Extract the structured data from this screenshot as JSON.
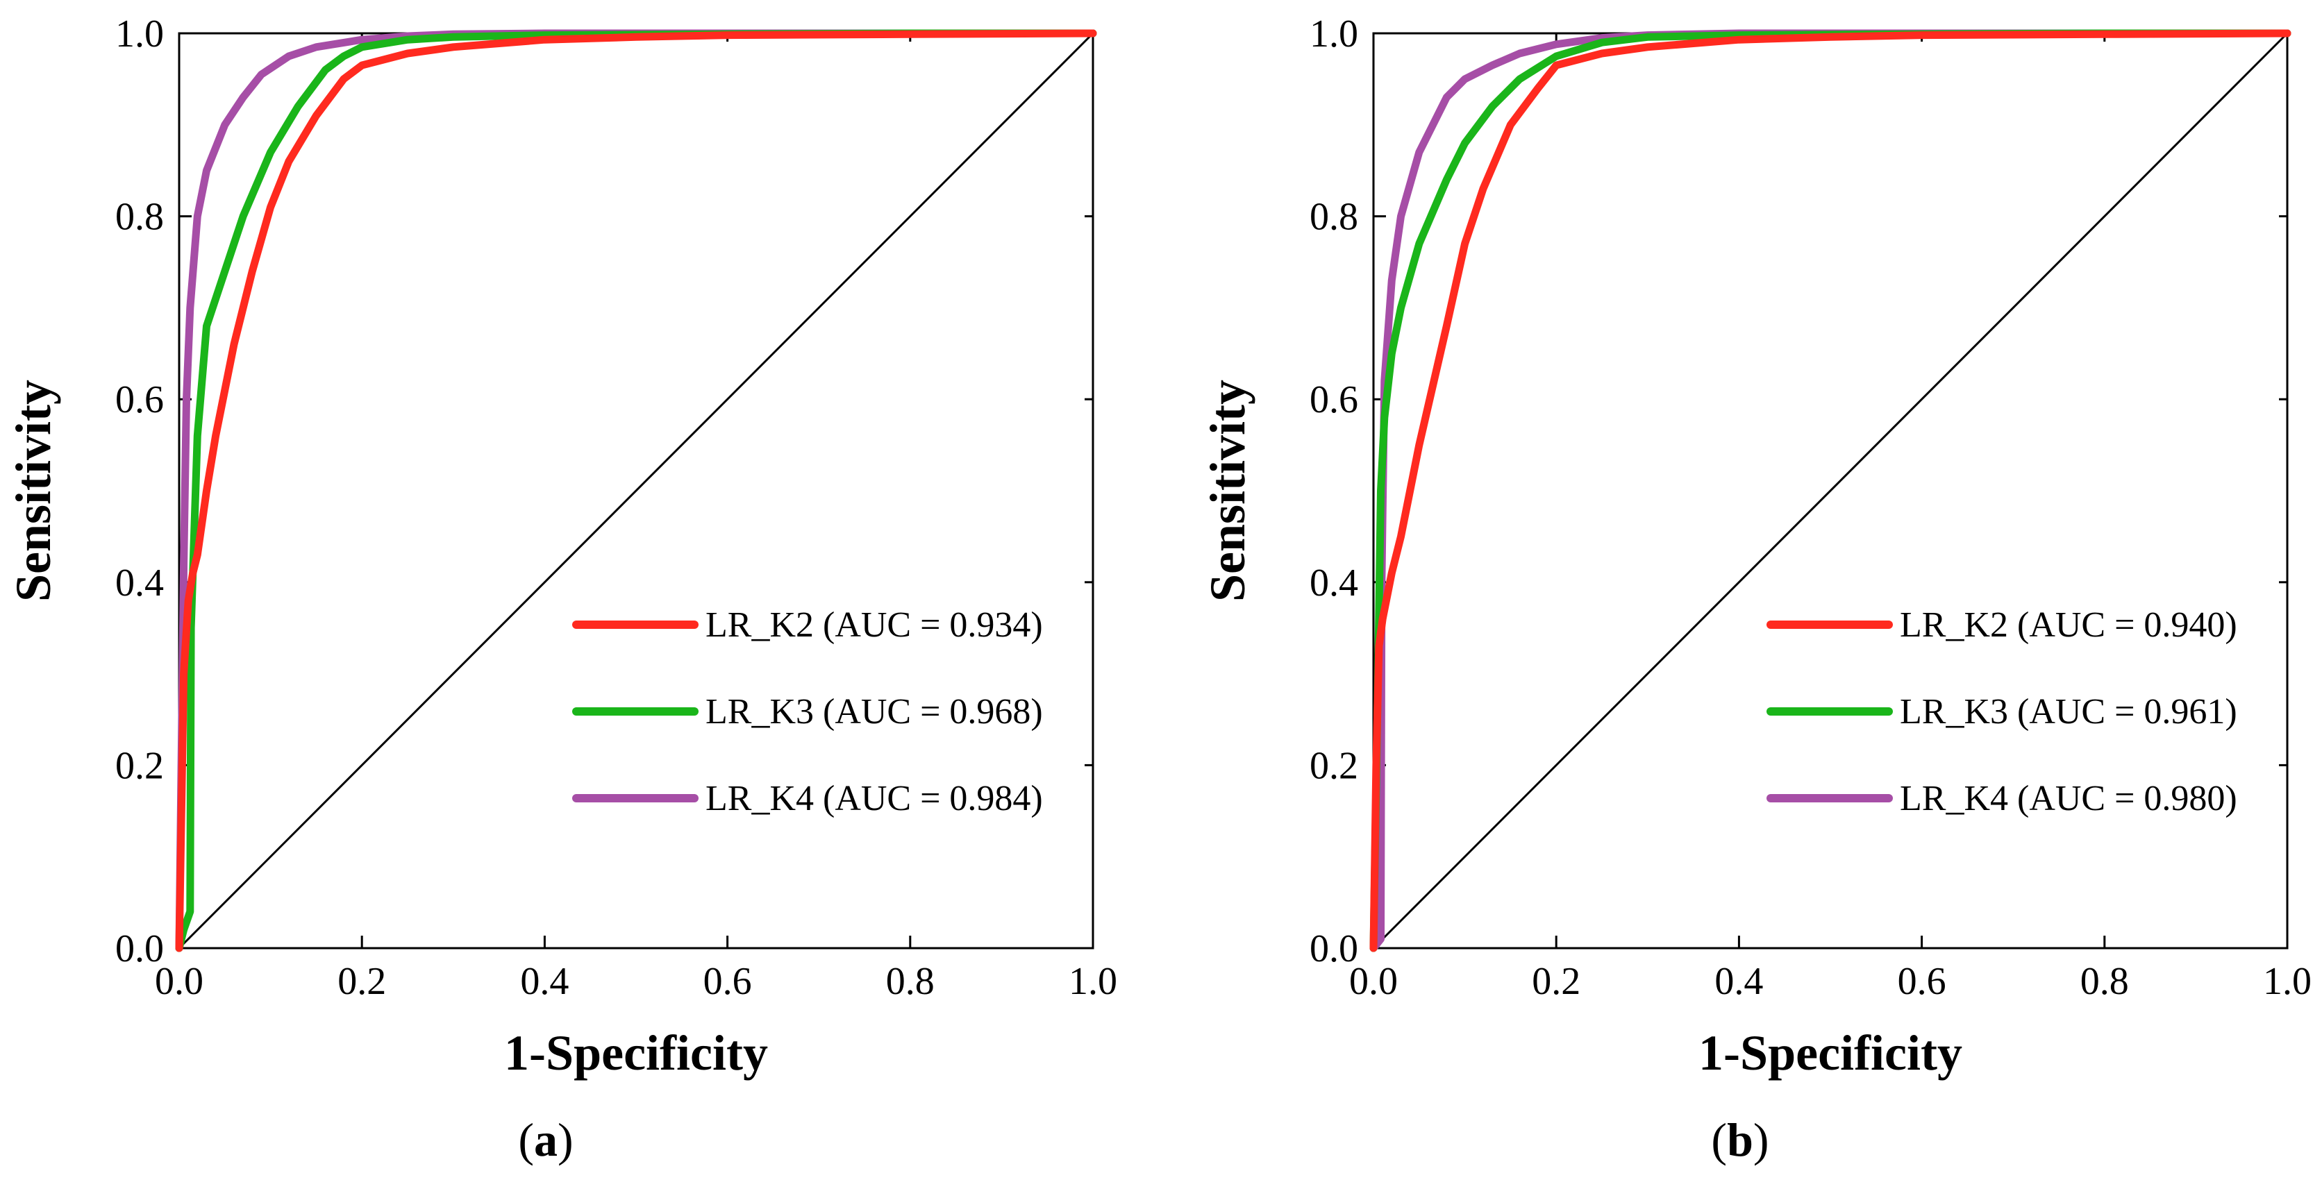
{
  "chart_data": [
    {
      "type": "line",
      "panel_label": "(a)",
      "panel_label_parts": [
        "(",
        "a",
        ")"
      ],
      "xlabel": "1-Specificity",
      "ylabel": "Sensitivity",
      "xlim": [
        0,
        1
      ],
      "ylim": [
        0,
        1
      ],
      "xticks": [
        "0.0",
        "0.2",
        "0.4",
        "0.6",
        "0.8",
        "1.0"
      ],
      "yticks": [
        "0.0",
        "0.2",
        "0.4",
        "0.6",
        "0.8",
        "1.0"
      ],
      "legend_position": "lower-right",
      "reference_line": {
        "x": [
          0,
          1
        ],
        "y": [
          0,
          1
        ]
      },
      "series": [
        {
          "name": "LR_K2 (AUC = 0.934)",
          "color": "#ff2a1f",
          "x": [
            0,
            0.005,
            0.01,
            0.015,
            0.02,
            0.03,
            0.04,
            0.06,
            0.08,
            0.1,
            0.12,
            0.15,
            0.18,
            0.2,
            0.25,
            0.3,
            0.4,
            0.5,
            0.6,
            0.8,
            1.0
          ],
          "y": [
            0,
            0.3,
            0.38,
            0.41,
            0.43,
            0.5,
            0.56,
            0.66,
            0.74,
            0.81,
            0.86,
            0.91,
            0.95,
            0.965,
            0.978,
            0.985,
            0.993,
            0.996,
            0.998,
            0.999,
            1.0
          ]
        },
        {
          "name": "LR_K3 (AUC = 0.968)",
          "color": "#1ab51a",
          "x": [
            0,
            0.005,
            0.012,
            0.013,
            0.02,
            0.03,
            0.05,
            0.07,
            0.1,
            0.13,
            0.16,
            0.18,
            0.2,
            0.25,
            0.3,
            0.4,
            0.6,
            0.8,
            1.0
          ],
          "y": [
            0,
            0.02,
            0.04,
            0.35,
            0.56,
            0.68,
            0.74,
            0.8,
            0.87,
            0.92,
            0.96,
            0.975,
            0.985,
            0.993,
            0.996,
            0.998,
            0.999,
            1.0,
            1.0
          ],
          "label": ""
        },
        {
          "name": "LR_K4 (AUC = 0.984)",
          "color": "#a64ea6",
          "x": [
            0,
            0.005,
            0.008,
            0.012,
            0.02,
            0.03,
            0.05,
            0.07,
            0.09,
            0.12,
            0.15,
            0.2,
            0.25,
            0.3,
            0.4,
            0.6,
            0.8,
            1.0
          ],
          "y": [
            0,
            0.42,
            0.6,
            0.7,
            0.8,
            0.85,
            0.9,
            0.93,
            0.955,
            0.975,
            0.985,
            0.993,
            0.997,
            0.999,
            1.0,
            1.0,
            1.0,
            1.0
          ]
        }
      ]
    },
    {
      "type": "line",
      "panel_label": "(b)",
      "panel_label_parts": [
        "(",
        "b",
        ")"
      ],
      "xlabel": "1-Specificity",
      "ylabel": "Sensitivity",
      "xlim": [
        0,
        1
      ],
      "ylim": [
        0,
        1
      ],
      "xticks": [
        "0.0",
        "0.2",
        "0.4",
        "0.6",
        "0.8",
        "1.0"
      ],
      "yticks": [
        "0.0",
        "0.2",
        "0.4",
        "0.6",
        "0.8",
        "1.0"
      ],
      "legend_position": "lower-right",
      "reference_line": {
        "x": [
          0,
          1
        ],
        "y": [
          0,
          1
        ]
      },
      "series": [
        {
          "name": "LR_K2 (AUC = 0.940)",
          "color": "#ff2a1f",
          "x": [
            0,
            0.003,
            0.006,
            0.01,
            0.02,
            0.03,
            0.05,
            0.08,
            0.1,
            0.12,
            0.15,
            0.18,
            0.2,
            0.25,
            0.3,
            0.4,
            0.5,
            0.6,
            0.8,
            1.0
          ],
          "y": [
            0,
            0.2,
            0.33,
            0.36,
            0.41,
            0.45,
            0.55,
            0.68,
            0.77,
            0.83,
            0.9,
            0.94,
            0.965,
            0.978,
            0.985,
            0.993,
            0.996,
            0.998,
            0.999,
            1.0
          ]
        },
        {
          "name": "LR_K3 (AUC = 0.961)",
          "color": "#1ab51a",
          "x": [
            0,
            0.005,
            0.008,
            0.012,
            0.02,
            0.03,
            0.05,
            0.08,
            0.1,
            0.13,
            0.16,
            0.2,
            0.25,
            0.3,
            0.4,
            0.6,
            0.8,
            1.0
          ],
          "y": [
            0,
            0.3,
            0.5,
            0.58,
            0.65,
            0.7,
            0.77,
            0.84,
            0.88,
            0.92,
            0.95,
            0.975,
            0.99,
            0.996,
            0.998,
            0.999,
            1.0,
            1.0
          ]
        },
        {
          "name": "LR_K4 (AUC = 0.980)",
          "color": "#a64ea6",
          "x": [
            0,
            0.008,
            0.009,
            0.012,
            0.02,
            0.03,
            0.05,
            0.08,
            0.1,
            0.13,
            0.16,
            0.2,
            0.25,
            0.3,
            0.4,
            0.6,
            0.8,
            1.0
          ],
          "y": [
            0,
            0.01,
            0.4,
            0.62,
            0.73,
            0.8,
            0.87,
            0.93,
            0.95,
            0.965,
            0.978,
            0.988,
            0.995,
            0.998,
            1.0,
            1.0,
            1.0,
            1.0
          ]
        }
      ]
    }
  ]
}
